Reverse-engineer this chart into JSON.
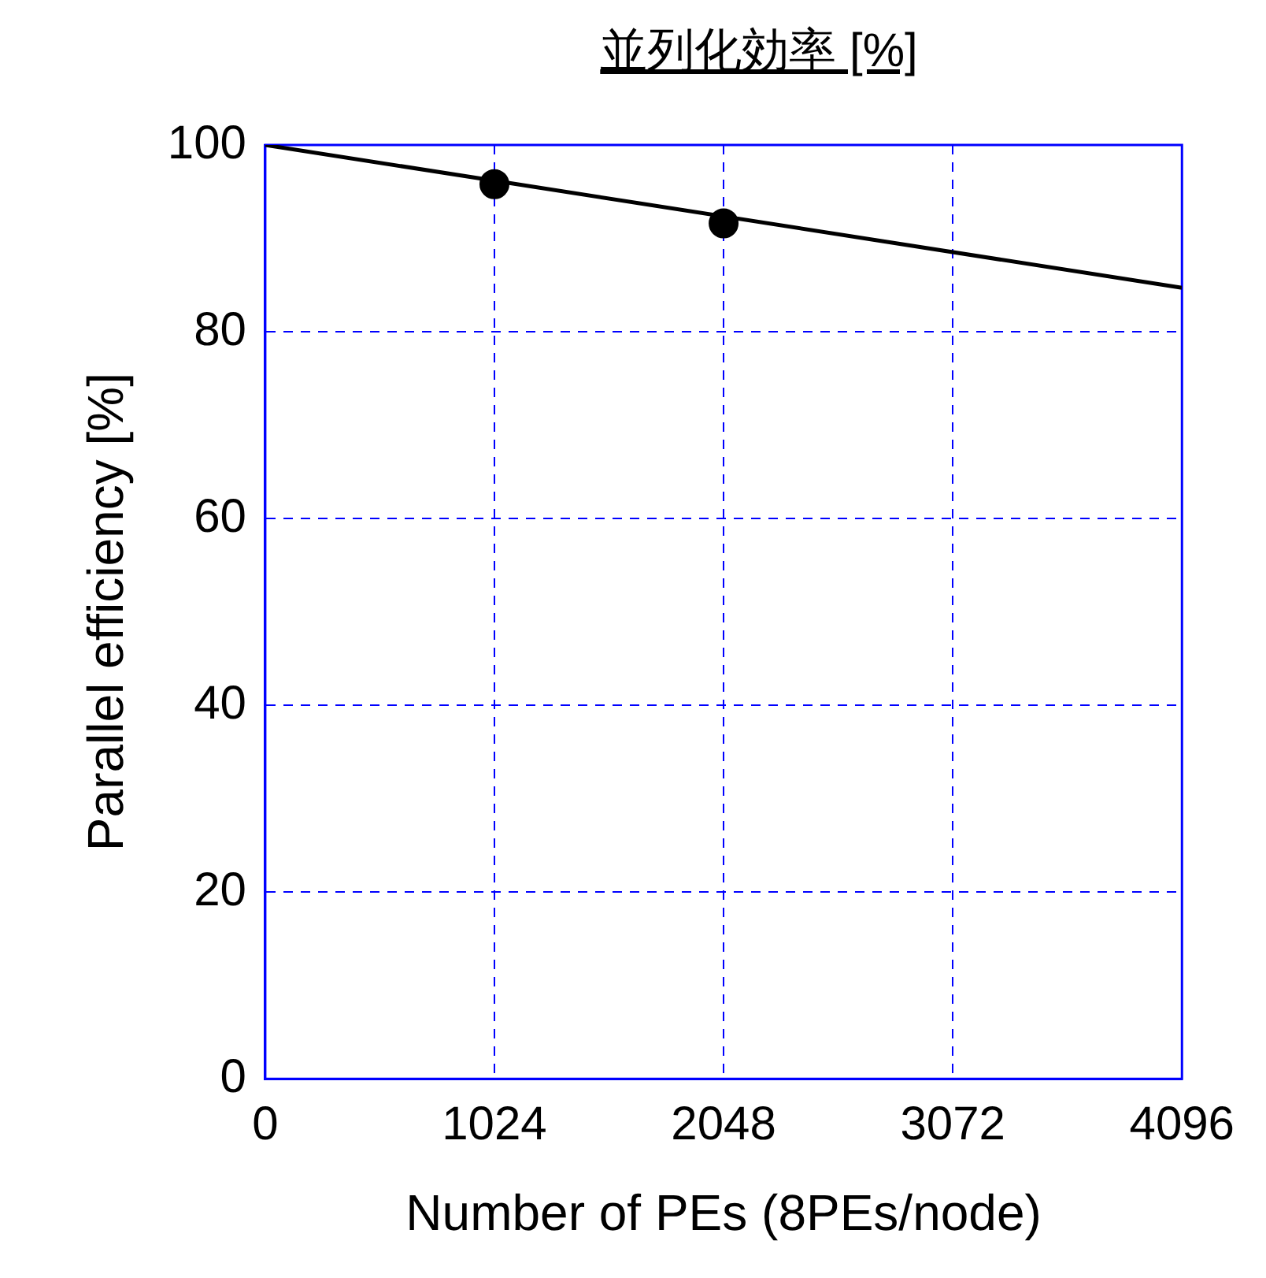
{
  "chart_data": {
    "type": "scatter",
    "title": "並列化効率 [%]",
    "xlabel": "Number of PEs (8PEs/node)",
    "ylabel": "Parallel efficiency [%]",
    "marker": "circle",
    "grid": true,
    "legend": false,
    "series": [
      {
        "color": "#000000",
        "x": [
          1024,
          2048
        ],
        "values": [
          95.8,
          91.6
        ]
      },
      {
        "type": "line",
        "color": "#000000",
        "x": [
          0,
          4096
        ],
        "values": [
          100,
          84.7
        ],
        "marker": "none"
      }
    ],
    "xlim": [
      0,
      4096
    ],
    "xticks": [
      0,
      1024,
      2048,
      3072,
      4096
    ],
    "ylim": [
      0,
      100
    ],
    "yticks": [
      0,
      20,
      40,
      60,
      80,
      100
    ]
  }
}
